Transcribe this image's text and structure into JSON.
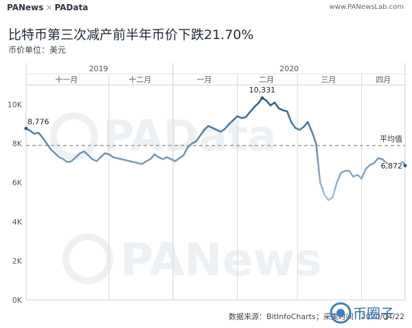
{
  "header": {
    "brand_left": "PANews",
    "brand_sep": "×",
    "brand_right": "PAData",
    "site": "www.PANewsLab.com"
  },
  "title": "比特币第三次减产前半年币价下跌21.70%",
  "subtitle": "币价单位：美元",
  "source": "数据来源：BitInfoCharts；采集时间：2020/04/22",
  "watermarks": [
    "PAData",
    "PANews",
    "币圈子"
  ],
  "colors": {
    "line_dark": "#2b5b82",
    "line_light": "#a9c4da",
    "avg_line": "#999999"
  },
  "chart_data": {
    "type": "line",
    "years": [
      {
        "label": "2019",
        "start": "2019-10-22",
        "end": "2019-12-31"
      },
      {
        "label": "2020",
        "start": "2020-01-01",
        "end": "2020-04-22"
      }
    ],
    "months": [
      {
        "label": "十一月",
        "start": "2019-10-22",
        "end": "2019-11-30"
      },
      {
        "label": "十二月",
        "start": "2019-12-01",
        "end": "2019-12-31"
      },
      {
        "label": "一月",
        "start": "2020-01-01",
        "end": "2020-01-31"
      },
      {
        "label": "二月",
        "start": "2020-02-01",
        "end": "2020-02-29"
      },
      {
        "label": "三月",
        "start": "2020-03-01",
        "end": "2020-03-31"
      },
      {
        "label": "四月",
        "start": "2020-04-01",
        "end": "2020-04-22"
      }
    ],
    "y_ticks": [
      {
        "value": 0,
        "label": "0K"
      },
      {
        "value": 2000,
        "label": "2K"
      },
      {
        "value": 4000,
        "label": "4K"
      },
      {
        "value": 6000,
        "label": "6K"
      },
      {
        "value": 8000,
        "label": "8K"
      },
      {
        "value": 10000,
        "label": "10K"
      }
    ],
    "ylim": [
      0,
      11000
    ],
    "average": {
      "value": 7900,
      "label": "平均值"
    },
    "annotations": [
      {
        "date": "2019-10-22",
        "value": 8776,
        "label": "8,776"
      },
      {
        "date": "2020-02-13",
        "value": 10331,
        "label": "10,331"
      },
      {
        "date": "2020-04-22",
        "value": 6872,
        "label": "6,872"
      }
    ],
    "x": [
      "2019-10-22",
      "2019-10-24",
      "2019-10-26",
      "2019-10-28",
      "2019-10-30",
      "2019-11-01",
      "2019-11-03",
      "2019-11-05",
      "2019-11-07",
      "2019-11-09",
      "2019-11-11",
      "2019-11-13",
      "2019-11-15",
      "2019-11-17",
      "2019-11-19",
      "2019-11-21",
      "2019-11-23",
      "2019-11-25",
      "2019-11-27",
      "2019-11-29",
      "2019-12-01",
      "2019-12-03",
      "2019-12-05",
      "2019-12-07",
      "2019-12-09",
      "2019-12-11",
      "2019-12-13",
      "2019-12-15",
      "2019-12-17",
      "2019-12-19",
      "2019-12-21",
      "2019-12-23",
      "2019-12-25",
      "2019-12-27",
      "2019-12-29",
      "2019-12-31",
      "2020-01-02",
      "2020-01-04",
      "2020-01-06",
      "2020-01-08",
      "2020-01-10",
      "2020-01-12",
      "2020-01-14",
      "2020-01-16",
      "2020-01-18",
      "2020-01-20",
      "2020-01-22",
      "2020-01-24",
      "2020-01-26",
      "2020-01-28",
      "2020-01-30",
      "2020-02-01",
      "2020-02-03",
      "2020-02-05",
      "2020-02-07",
      "2020-02-09",
      "2020-02-11",
      "2020-02-13",
      "2020-02-15",
      "2020-02-17",
      "2020-02-19",
      "2020-02-21",
      "2020-02-23",
      "2020-02-25",
      "2020-02-27",
      "2020-02-29",
      "2020-03-02",
      "2020-03-04",
      "2020-03-06",
      "2020-03-08",
      "2020-03-10",
      "2020-03-12",
      "2020-03-14",
      "2020-03-16",
      "2020-03-18",
      "2020-03-20",
      "2020-03-22",
      "2020-03-24",
      "2020-03-26",
      "2020-03-28",
      "2020-03-30",
      "2020-04-01",
      "2020-04-03",
      "2020-04-05",
      "2020-04-07",
      "2020-04-09",
      "2020-04-11",
      "2020-04-13",
      "2020-04-15",
      "2020-04-17",
      "2020-04-19",
      "2020-04-21",
      "2020-04-22"
    ],
    "y": [
      8776,
      8650,
      8500,
      8550,
      8300,
      8000,
      7700,
      7500,
      7300,
      7200,
      7050,
      7100,
      7300,
      7500,
      7600,
      7400,
      7200,
      7100,
      7300,
      7500,
      7450,
      7300,
      7250,
      7200,
      7150,
      7100,
      7050,
      7000,
      6950,
      7100,
      7200,
      7450,
      7300,
      7200,
      7300,
      7200,
      7100,
      7250,
      7400,
      7800,
      8000,
      8100,
      8400,
      8700,
      8900,
      8800,
      8700,
      8600,
      8750,
      9000,
      9200,
      9400,
      9300,
      9350,
      9600,
      9850,
      10050,
      10331,
      10200,
      9950,
      10100,
      9800,
      9700,
      9650,
      9100,
      8800,
      8700,
      8850,
      9100,
      8600,
      8000,
      6000,
      5400,
      5100,
      5250,
      6000,
      6500,
      6600,
      6600,
      6300,
      6400,
      6200,
      6700,
      6900,
      7000,
      7250,
      7200,
      7000,
      6900,
      6950,
      7000,
      7050,
      6872
    ]
  }
}
